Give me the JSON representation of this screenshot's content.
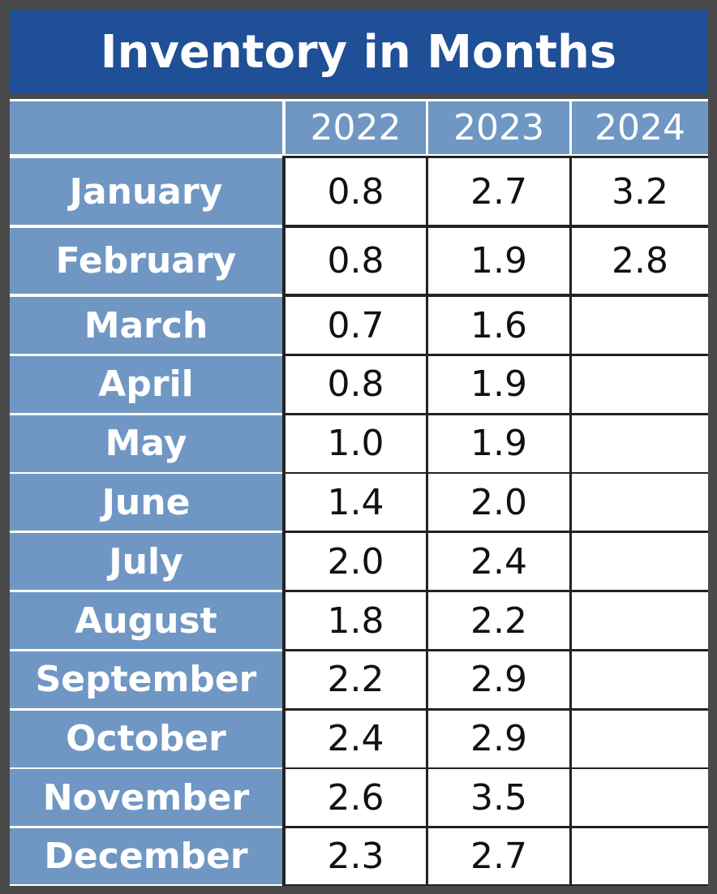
{
  "table": {
    "title": "Inventory in Months",
    "columns": [
      "2022",
      "2023",
      "2024"
    ],
    "rows": [
      {
        "label": "January",
        "cells": [
          "0.8",
          "2.7",
          "3.2"
        ]
      },
      {
        "label": "February",
        "cells": [
          "0.8",
          "1.9",
          "2.8"
        ]
      },
      {
        "label": "March",
        "cells": [
          "0.7",
          "1.6"
        ]
      },
      {
        "label": "April",
        "cells": [
          "0.8",
          "1.9"
        ]
      },
      {
        "label": "May",
        "cells": [
          "1.0",
          "1.9"
        ]
      },
      {
        "label": "June",
        "cells": [
          "1.4",
          "2.0"
        ]
      },
      {
        "label": "July",
        "cells": [
          "2.0",
          "2.4"
        ]
      },
      {
        "label": "August",
        "cells": [
          "1.8",
          "2.2"
        ]
      },
      {
        "label": "September",
        "cells": [
          "2.2",
          "2.9"
        ]
      },
      {
        "label": "October",
        "cells": [
          "2.4",
          "2.9"
        ]
      },
      {
        "label": "November",
        "cells": [
          "2.6",
          "3.5"
        ]
      },
      {
        "label": "December",
        "cells": [
          "2.3",
          "2.7"
        ]
      }
    ]
  }
}
